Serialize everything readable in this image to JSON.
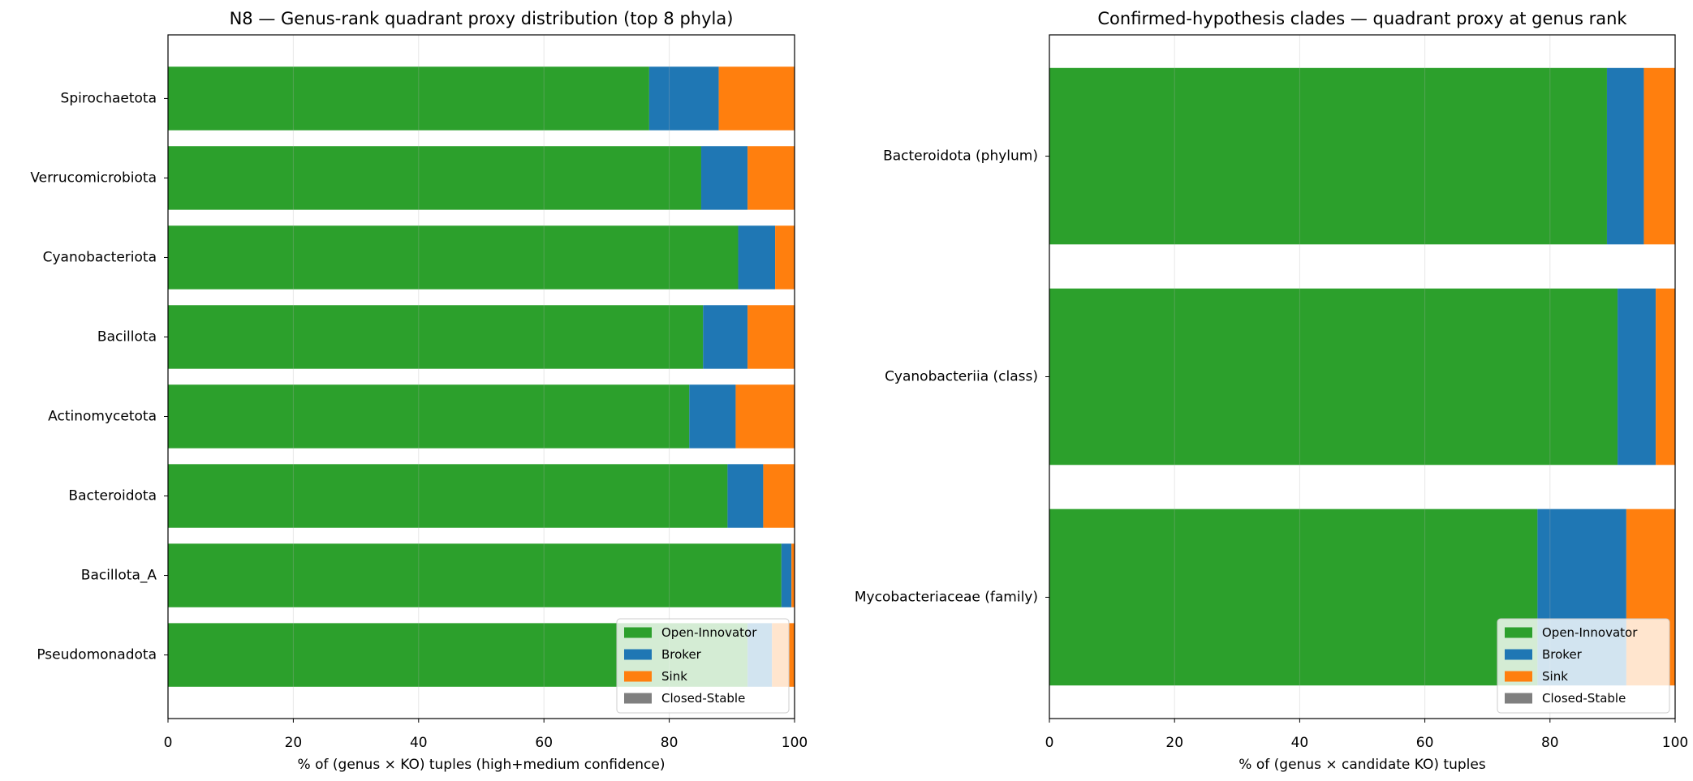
{
  "chart_data": [
    {
      "type": "bar",
      "orientation": "horizontal",
      "stacked": true,
      "title": "N8 — Genus-rank quadrant proxy distribution (top 8 phyla)",
      "xlabel": "% of (genus × KO) tuples (high+medium confidence)",
      "categories": [
        "Spirochaetota",
        "Verrucomicrobiota",
        "Cyanobacteriota",
        "Bacillota",
        "Actinomycetota",
        "Bacteroidota",
        "Bacillota_A",
        "Pseudomonadota"
      ],
      "series": [
        {
          "name": "Open-Innovator",
          "color": "#2ca02c",
          "values": [
            76.8,
            85.1,
            91.0,
            85.4,
            83.2,
            89.3,
            97.9,
            92.5
          ]
        },
        {
          "name": "Broker",
          "color": "#1f77b4",
          "values": [
            11.1,
            7.4,
            5.9,
            7.1,
            7.4,
            5.7,
            1.6,
            3.9
          ]
        },
        {
          "name": "Sink",
          "color": "#ff7f0e",
          "values": [
            12.1,
            7.5,
            3.1,
            7.5,
            9.4,
            5.0,
            0.5,
            3.6
          ]
        },
        {
          "name": "Closed-Stable",
          "color": "#7f7f7f",
          "values": [
            0,
            0,
            0,
            0,
            0,
            0,
            0,
            0
          ]
        }
      ],
      "xlim": [
        0,
        100
      ],
      "xticks": [
        0,
        20,
        40,
        60,
        80,
        100
      ],
      "grid": true,
      "legend": "lower right"
    },
    {
      "type": "bar",
      "orientation": "horizontal",
      "stacked": true,
      "title": "Confirmed-hypothesis clades — quadrant proxy at genus rank",
      "xlabel": "% of (genus × candidate KO) tuples",
      "categories": [
        "Bacteroidota (phylum)",
        "Cyanobacteriia (class)",
        "Mycobacteriaceae (family)"
      ],
      "series": [
        {
          "name": "Open-Innovator",
          "color": "#2ca02c",
          "values": [
            89.1,
            90.8,
            78.0
          ]
        },
        {
          "name": "Broker",
          "color": "#1f77b4",
          "values": [
            5.9,
            6.1,
            14.2
          ]
        },
        {
          "name": "Sink",
          "color": "#ff7f0e",
          "values": [
            5.0,
            3.1,
            7.8
          ]
        },
        {
          "name": "Closed-Stable",
          "color": "#7f7f7f",
          "values": [
            0,
            0,
            0
          ]
        }
      ],
      "xlim": [
        0,
        100
      ],
      "xticks": [
        0,
        20,
        40,
        60,
        80,
        100
      ],
      "grid": true,
      "legend": "lower right"
    }
  ]
}
